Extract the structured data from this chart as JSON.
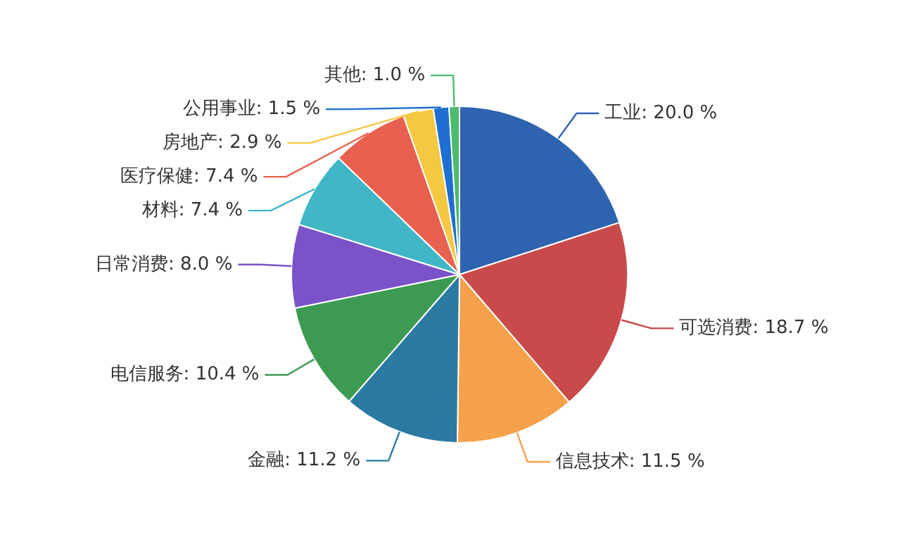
{
  "chart_data": {
    "type": "pie",
    "categories": [
      "工业",
      "可选消费",
      "信息技术",
      "金融",
      "电信服务",
      "日常消费",
      "材料",
      "医疗保健",
      "房地产",
      "公用事业",
      "其他"
    ],
    "values": [
      20.0,
      18.7,
      11.5,
      11.2,
      10.4,
      8.0,
      7.4,
      7.4,
      2.9,
      1.5,
      1.0
    ],
    "value_labels": [
      "20.0 %",
      "18.7 %",
      "11.5 %",
      "11.2 %",
      "10.4 %",
      "8.0 %",
      "7.4 %",
      "7.4 %",
      "2.9 %",
      "1.5 %",
      "1.0 %"
    ],
    "colors": [
      "#2e63b0",
      "#c94a4a",
      "#f5a04a",
      "#2a7aa2",
      "#3d9a52",
      "#7b52c8",
      "#41b6c6",
      "#e8604e",
      "#f5c842",
      "#1f6fd0",
      "#4dbb6e"
    ]
  }
}
